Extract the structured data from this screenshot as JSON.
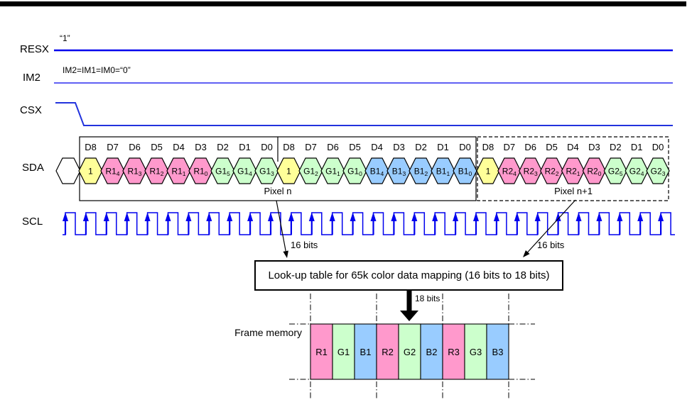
{
  "palette": {
    "bit_yellow": "#FFFF99",
    "bit_pink": "#FF99CC",
    "bit_green": "#CCFFCC",
    "bit_blue": "#99CCFF",
    "signal_blue": "#0000EE",
    "csx_blue": "#2233DD",
    "line_black": "#000000"
  },
  "signals": {
    "resx": {
      "label": "RESX",
      "annotation": "“1”"
    },
    "im2": {
      "label": "IM2",
      "annotation": "IM2=IM1=IM0=“0”"
    },
    "csx": {
      "label": "CSX"
    },
    "sda": {
      "label": "SDA"
    },
    "scl": {
      "label": "SCL"
    }
  },
  "sda_stream": {
    "bit_headers": [
      "D8",
      "D7",
      "D6",
      "D5",
      "D4",
      "D3",
      "D2",
      "D1",
      "D0"
    ],
    "boxes": [
      {
        "style": "solid",
        "pixel_label": "Pixel n",
        "bytes": [
          [
            {
              "t": "1",
              "c": "bit_yellow"
            },
            {
              "t": "R1",
              "s": "4",
              "c": "bit_pink"
            },
            {
              "t": "R1",
              "s": "3",
              "c": "bit_pink"
            },
            {
              "t": "R1",
              "s": "2",
              "c": "bit_pink"
            },
            {
              "t": "R1",
              "s": "1",
              "c": "bit_pink"
            },
            {
              "t": "R1",
              "s": "0",
              "c": "bit_pink"
            },
            {
              "t": "G1",
              "s": "5",
              "c": "bit_green"
            },
            {
              "t": "G1",
              "s": "4",
              "c": "bit_green"
            },
            {
              "t": "G1",
              "s": "3",
              "c": "bit_green"
            }
          ],
          [
            {
              "t": "1",
              "c": "bit_yellow"
            },
            {
              "t": "G1",
              "s": "2",
              "c": "bit_green"
            },
            {
              "t": "G1",
              "s": "1",
              "c": "bit_green"
            },
            {
              "t": "G1",
              "s": "0",
              "c": "bit_green"
            },
            {
              "t": "B1",
              "s": "4",
              "c": "bit_blue"
            },
            {
              "t": "B1",
              "s": "3",
              "c": "bit_blue"
            },
            {
              "t": "B1",
              "s": "2",
              "c": "bit_blue"
            },
            {
              "t": "B1",
              "s": "1",
              "c": "bit_blue"
            },
            {
              "t": "B1",
              "s": "0",
              "c": "bit_blue"
            }
          ]
        ]
      },
      {
        "style": "dashed",
        "pixel_label": "Pixel n+1",
        "bytes": [
          [
            {
              "t": "1",
              "c": "bit_yellow"
            },
            {
              "t": "R2",
              "s": "4",
              "c": "bit_pink"
            },
            {
              "t": "R2",
              "s": "3",
              "c": "bit_pink"
            },
            {
              "t": "R2",
              "s": "2",
              "c": "bit_pink"
            },
            {
              "t": "R2",
              "s": "1",
              "c": "bit_pink"
            },
            {
              "t": "R2",
              "s": "0",
              "c": "bit_pink"
            },
            {
              "t": "G2",
              "s": "5",
              "c": "bit_green"
            },
            {
              "t": "G2",
              "s": "4",
              "c": "bit_green"
            },
            {
              "t": "G2",
              "s": "3",
              "c": "bit_green"
            }
          ]
        ]
      }
    ]
  },
  "annotations": {
    "bits16_left": "16 bits",
    "bits16_right": "16 bits",
    "bits18": "18 bits"
  },
  "lut": {
    "text": "Look-up table for 65k color data mapping (16 bits to 18 bits)"
  },
  "frame_memory": {
    "label": "Frame memory",
    "cells": [
      {
        "t": "R1",
        "c": "bit_pink"
      },
      {
        "t": "G1",
        "c": "bit_green"
      },
      {
        "t": "B1",
        "c": "bit_blue"
      },
      {
        "t": "R2",
        "c": "bit_pink"
      },
      {
        "t": "G2",
        "c": "bit_green"
      },
      {
        "t": "B2",
        "c": "bit_blue"
      },
      {
        "t": "R3",
        "c": "bit_pink"
      },
      {
        "t": "G3",
        "c": "bit_green"
      },
      {
        "t": "B3",
        "c": "bit_blue"
      }
    ]
  }
}
